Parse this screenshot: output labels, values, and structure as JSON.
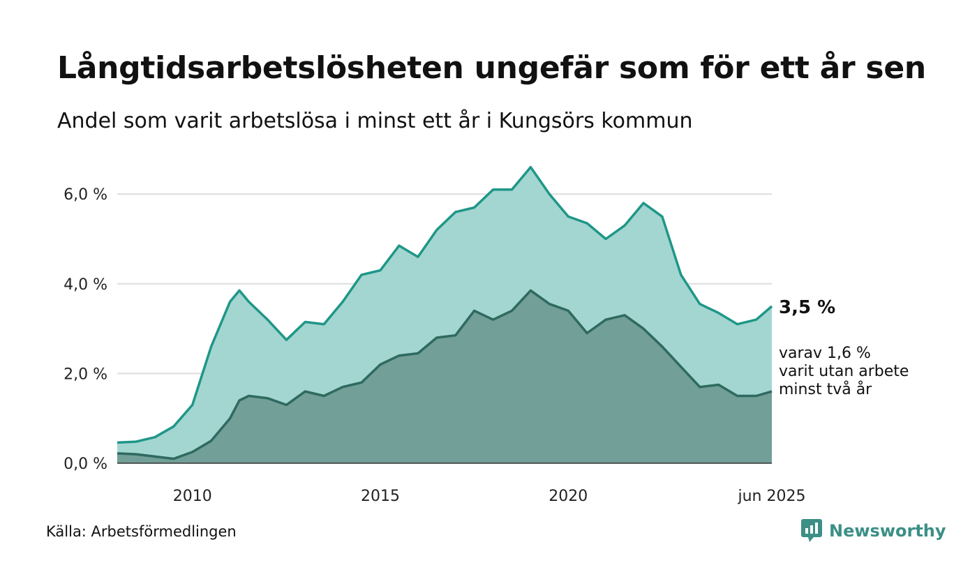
{
  "title": "Långtidsarbetslösheten ungefär som för ett år sen",
  "subtitle": "Andel som varit arbetslösa i minst ett år i Kungsörs kommun",
  "source": "Källa: Arbetsförmedlingen",
  "brand": {
    "name": "Newsworthy",
    "icon": "newsworthy-logo-icon"
  },
  "colors": {
    "series1_line": "#1f9688",
    "series1_fill": "#a3d6d0",
    "series2_line": "#2e6a60",
    "series2_fill": "#729f98",
    "grid": "#dddddd",
    "brand": "#3b8f86"
  },
  "chart_data": {
    "type": "area",
    "title": "Långtidsarbetslösheten ungefär som för ett år sen",
    "subtitle": "Andel som varit arbetslösa i minst ett år i Kungsörs kommun",
    "x_start": "2008-01",
    "x_end": "2025-06",
    "x_ticks": [
      "2010",
      "2015",
      "2020",
      "jun 2025"
    ],
    "y_ticks": [
      "0,0 %",
      "2,0 %",
      "4,0 %",
      "6,0 %"
    ],
    "ylim": [
      0,
      6.6
    ],
    "grid": true,
    "series": [
      {
        "role": "minst ett år",
        "end_label": "3,5 %",
        "points": [
          [
            "2008-01",
            0.46
          ],
          [
            "2008-07",
            0.48
          ],
          [
            "2009-01",
            0.58
          ],
          [
            "2009-07",
            0.82
          ],
          [
            "2010-01",
            1.3
          ],
          [
            "2010-07",
            2.6
          ],
          [
            "2011-01",
            3.6
          ],
          [
            "2011-04",
            3.85
          ],
          [
            "2011-07",
            3.6
          ],
          [
            "2012-01",
            3.2
          ],
          [
            "2012-07",
            2.75
          ],
          [
            "2013-01",
            3.15
          ],
          [
            "2013-07",
            3.1
          ],
          [
            "2014-01",
            3.6
          ],
          [
            "2014-07",
            4.2
          ],
          [
            "2015-01",
            4.3
          ],
          [
            "2015-07",
            4.85
          ],
          [
            "2016-01",
            4.6
          ],
          [
            "2016-07",
            5.2
          ],
          [
            "2017-01",
            5.6
          ],
          [
            "2017-07",
            5.7
          ],
          [
            "2018-01",
            6.1
          ],
          [
            "2018-07",
            6.1
          ],
          [
            "2019-01",
            6.6
          ],
          [
            "2019-07",
            6.0
          ],
          [
            "2020-01",
            5.5
          ],
          [
            "2020-07",
            5.35
          ],
          [
            "2021-01",
            5.0
          ],
          [
            "2021-07",
            5.3
          ],
          [
            "2022-01",
            5.8
          ],
          [
            "2022-07",
            5.5
          ],
          [
            "2023-01",
            4.2
          ],
          [
            "2023-07",
            3.55
          ],
          [
            "2024-01",
            3.35
          ],
          [
            "2024-07",
            3.1
          ],
          [
            "2025-01",
            3.2
          ],
          [
            "2025-06",
            3.5
          ]
        ]
      },
      {
        "role": "minst två år",
        "end_label": "varav 1,6 % varit utan arbete minst två år",
        "end_label_lines": [
          "varav 1,6 %",
          "varit utan arbete",
          "minst två år"
        ],
        "points": [
          [
            "2008-01",
            0.22
          ],
          [
            "2008-07",
            0.2
          ],
          [
            "2009-01",
            0.15
          ],
          [
            "2009-07",
            0.1
          ],
          [
            "2010-01",
            0.25
          ],
          [
            "2010-07",
            0.5
          ],
          [
            "2011-01",
            1.0
          ],
          [
            "2011-04",
            1.4
          ],
          [
            "2011-07",
            1.5
          ],
          [
            "2012-01",
            1.45
          ],
          [
            "2012-07",
            1.3
          ],
          [
            "2013-01",
            1.6
          ],
          [
            "2013-07",
            1.5
          ],
          [
            "2014-01",
            1.7
          ],
          [
            "2014-07",
            1.8
          ],
          [
            "2015-01",
            2.2
          ],
          [
            "2015-07",
            2.4
          ],
          [
            "2016-01",
            2.45
          ],
          [
            "2016-07",
            2.8
          ],
          [
            "2017-01",
            2.85
          ],
          [
            "2017-07",
            3.4
          ],
          [
            "2018-01",
            3.2
          ],
          [
            "2018-07",
            3.4
          ],
          [
            "2019-01",
            3.85
          ],
          [
            "2019-07",
            3.55
          ],
          [
            "2020-01",
            3.4
          ],
          [
            "2020-07",
            2.9
          ],
          [
            "2021-01",
            3.2
          ],
          [
            "2021-07",
            3.3
          ],
          [
            "2022-01",
            3.0
          ],
          [
            "2022-07",
            2.6
          ],
          [
            "2023-01",
            2.15
          ],
          [
            "2023-07",
            1.7
          ],
          [
            "2024-01",
            1.75
          ],
          [
            "2024-07",
            1.5
          ],
          [
            "2025-01",
            1.5
          ],
          [
            "2025-06",
            1.6
          ]
        ]
      }
    ]
  }
}
